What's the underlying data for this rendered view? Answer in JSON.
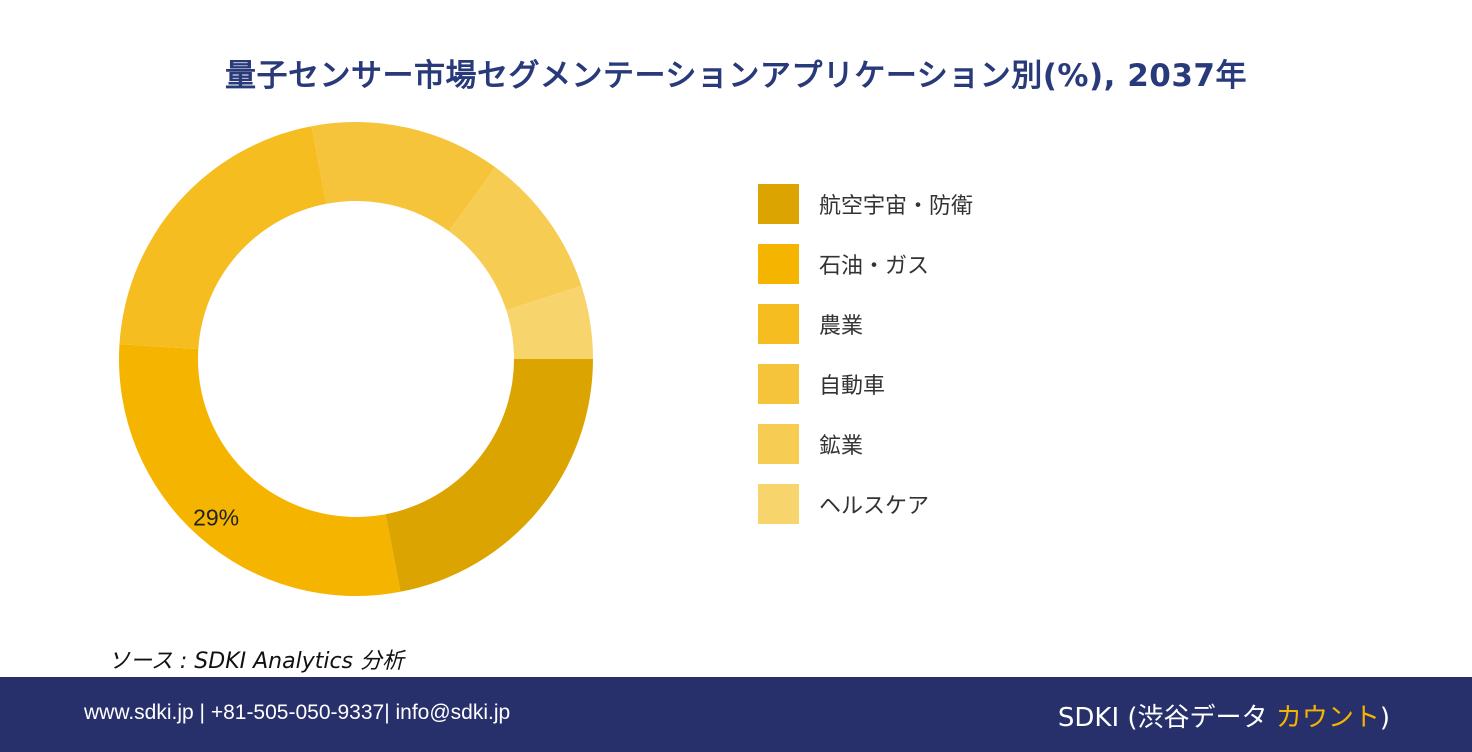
{
  "title": "量子センサー市場セグメンテーションアプリケーション別(%), 2037年",
  "chart_data": {
    "type": "pie",
    "donut": true,
    "categories": [
      "航空宇宙・防衛",
      "石油・ガス",
      "農業",
      "自動車",
      "鉱業",
      "ヘルスケア"
    ],
    "values": [
      22,
      29,
      21,
      13,
      10,
      5
    ],
    "colors": [
      "#dba400",
      "#f4b400",
      "#f5bd20",
      "#f6c43a",
      "#f7cc52",
      "#f8d46c"
    ],
    "data_labels": [
      {
        "category": "石油・ガス",
        "text": "29%"
      }
    ],
    "legend_position": "right"
  },
  "source": "ソース : SDKI Analytics 分析",
  "footer": {
    "contact": "www.sdki.jp | +81-505-050-9337| info@sdki.jp",
    "brand_main": "SDKI (渋谷データ ",
    "brand_accent": "カウント",
    "brand_close": ")"
  }
}
